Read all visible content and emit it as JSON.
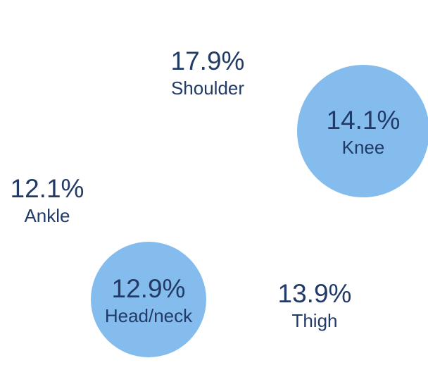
{
  "chart_data": {
    "type": "bubble",
    "title": "",
    "colors": {
      "bubble_fill": "#85bcee",
      "text": "#223a66"
    },
    "items": [
      {
        "label": "Shoulder",
        "value": 17.9,
        "display": "17.9%",
        "bubble": false
      },
      {
        "label": "Knee",
        "value": 14.1,
        "display": "14.1%",
        "bubble": true
      },
      {
        "label": "Ankle",
        "value": 12.1,
        "display": "12.1%",
        "bubble": false
      },
      {
        "label": "Head/neck",
        "value": 12.9,
        "display": "12.9%",
        "bubble": true
      },
      {
        "label": "Thigh",
        "value": 13.9,
        "display": "13.9%",
        "bubble": false
      }
    ]
  }
}
